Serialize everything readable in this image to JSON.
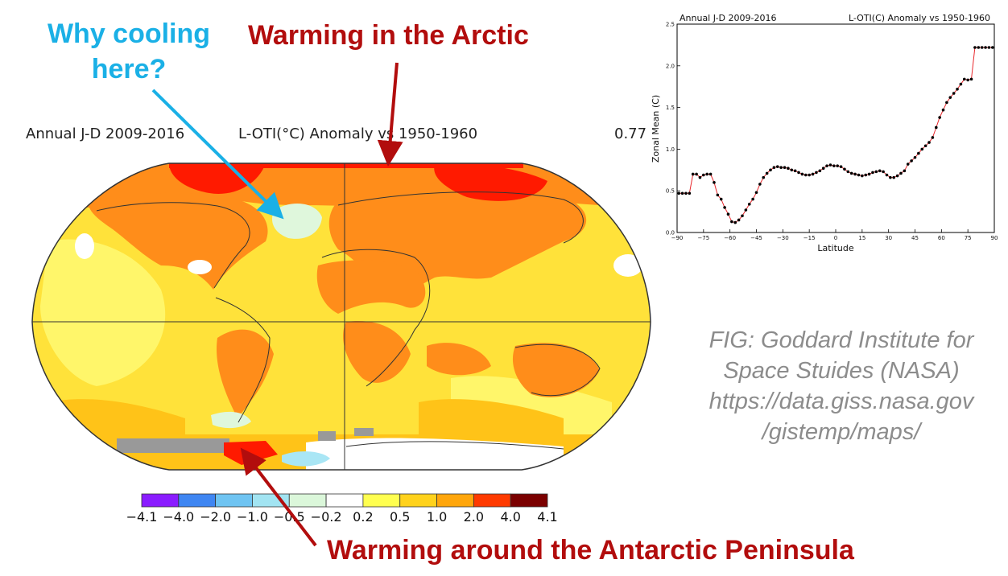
{
  "callouts": {
    "cooling_line1": "Why cooling",
    "cooling_line2": "here?",
    "arctic": "Warming in the Arctic",
    "antarctic": "Warming around the Antarctic Peninsula"
  },
  "map": {
    "title_left": "Annual J-D 2009-2016",
    "title_center": "L-OTI(°C) Anomaly vs 1950-1960",
    "global_mean": "0.77",
    "colorbar": {
      "ticks": [
        "−4.1",
        "−4.0",
        "−2.0",
        "−1.0",
        "−0.5",
        "−0.2",
        "0.2",
        "0.5",
        "1.0",
        "2.0",
        "4.0",
        "4.1"
      ],
      "colors": [
        "#8a1cff",
        "#3f86f2",
        "#6fc4f2",
        "#a2e4f2",
        "#dbf7da",
        "#ffffff",
        "#ffff50",
        "#ffd21c",
        "#ffa60c",
        "#ff3a00",
        "#7b0000"
      ]
    },
    "colors": {
      "yellow": "#ffe23a",
      "light_yellow": "#fff66a",
      "orange": "#ff8d1a",
      "gold": "#ffc318",
      "red": "#ff1a00",
      "gray": "#999999",
      "pale_green": "#dff7dc",
      "cyan": "#a9e6f5"
    }
  },
  "credit": {
    "line1": "FIG: Goddard Institute for",
    "line2": "Space Stuides (NASA)",
    "line3": "https://data.giss.nasa.gov",
    "line4": "/gistemp/maps/"
  },
  "chart_data": {
    "type": "line",
    "title_left": "Annual J-D 2009-2016",
    "title_right": "L-OTI(C) Anomaly vs 1950-1960",
    "xlabel": "Latitude",
    "ylabel": "Zonal Mean (C)",
    "xlim": [
      -90,
      90
    ],
    "ylim": [
      0.0,
      2.5
    ],
    "xticks": [
      "−90",
      "−75",
      "−60",
      "−45",
      "−30",
      "−15",
      "0",
      "15",
      "30",
      "45",
      "60",
      "75",
      "90"
    ],
    "yticks": [
      "0.0",
      "0.5",
      "1.0",
      "1.5",
      "2.0",
      "2.5"
    ],
    "line_color": "#e8262b",
    "marker_color": "#000000",
    "x": [
      -89,
      -87,
      -85,
      -83,
      -81,
      -79,
      -77,
      -75,
      -73,
      -71,
      -69,
      -67,
      -65,
      -63,
      -61,
      -59,
      -57,
      -55,
      -53,
      -51,
      -49,
      -47,
      -45,
      -43,
      -41,
      -39,
      -37,
      -35,
      -33,
      -31,
      -29,
      -27,
      -25,
      -23,
      -21,
      -19,
      -17,
      -15,
      -13,
      -11,
      -9,
      -7,
      -5,
      -3,
      -1,
      1,
      3,
      5,
      7,
      9,
      11,
      13,
      15,
      17,
      19,
      21,
      23,
      25,
      27,
      29,
      31,
      33,
      35,
      37,
      39,
      41,
      43,
      45,
      47,
      49,
      51,
      53,
      55,
      57,
      59,
      61,
      63,
      65,
      67,
      69,
      71,
      73,
      75,
      77,
      79,
      81,
      83,
      85,
      87,
      89
    ],
    "y": [
      0.47,
      0.47,
      0.47,
      0.47,
      0.7,
      0.7,
      0.66,
      0.69,
      0.7,
      0.7,
      0.6,
      0.45,
      0.4,
      0.3,
      0.22,
      0.13,
      0.12,
      0.15,
      0.2,
      0.27,
      0.34,
      0.4,
      0.48,
      0.58,
      0.66,
      0.71,
      0.75,
      0.78,
      0.79,
      0.78,
      0.78,
      0.77,
      0.75,
      0.74,
      0.72,
      0.7,
      0.69,
      0.69,
      0.7,
      0.72,
      0.74,
      0.77,
      0.8,
      0.81,
      0.8,
      0.8,
      0.79,
      0.76,
      0.73,
      0.71,
      0.7,
      0.69,
      0.68,
      0.69,
      0.7,
      0.72,
      0.73,
      0.74,
      0.73,
      0.69,
      0.66,
      0.66,
      0.68,
      0.71,
      0.74,
      0.82,
      0.86,
      0.9,
      0.95,
      1.0,
      1.04,
      1.08,
      1.14,
      1.26,
      1.38,
      1.47,
      1.56,
      1.62,
      1.67,
      1.72,
      1.78,
      1.84,
      1.83,
      1.84,
      2.22,
      2.22,
      2.22,
      2.22,
      2.22,
      2.22
    ]
  }
}
